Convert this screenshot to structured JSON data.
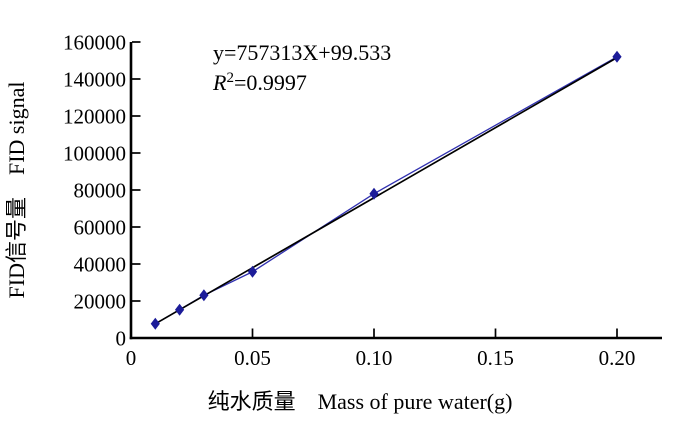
{
  "figure": {
    "background": "#ffffff"
  },
  "chart_data": {
    "type": "scatter",
    "title": "",
    "xlabel": "纯水质量　Mass of pure water(g)",
    "ylabel": "FID信号量　FID signal",
    "x": [
      0.01,
      0.02,
      0.03,
      0.05,
      0.1,
      0.2
    ],
    "y": [
      7700,
      15300,
      23100,
      35800,
      78000,
      152000
    ],
    "x_ticks": [
      0,
      0.05,
      0.1,
      0.15,
      0.2
    ],
    "x_tick_labels": [
      "0",
      "0.05",
      "0.10",
      "0.15",
      "0.20"
    ],
    "y_ticks": [
      0,
      20000,
      40000,
      60000,
      80000,
      100000,
      120000,
      140000,
      160000
    ],
    "y_tick_labels": [
      "0",
      "20000",
      "40000",
      "60000",
      "80000",
      "100000",
      "120000",
      "140000",
      "160000"
    ],
    "xlim": [
      0,
      0.2185
    ],
    "ylim": [
      0,
      160000
    ],
    "grid": false,
    "legend": "none",
    "trendline": {
      "equation_text": "y=757313X+99.533",
      "r2_base": "R",
      "r2_sup": "2",
      "r2_rest": "=0.9997",
      "slope": 757313,
      "intercept": 99.533,
      "r_squared": 0.9997,
      "x_start": 0.01,
      "x_end": 0.2
    },
    "colors": {
      "marker": "#1c1c99",
      "series_line": "#3030b0",
      "trendline": "#000000",
      "axis": "#000000",
      "text": "#000000"
    }
  }
}
